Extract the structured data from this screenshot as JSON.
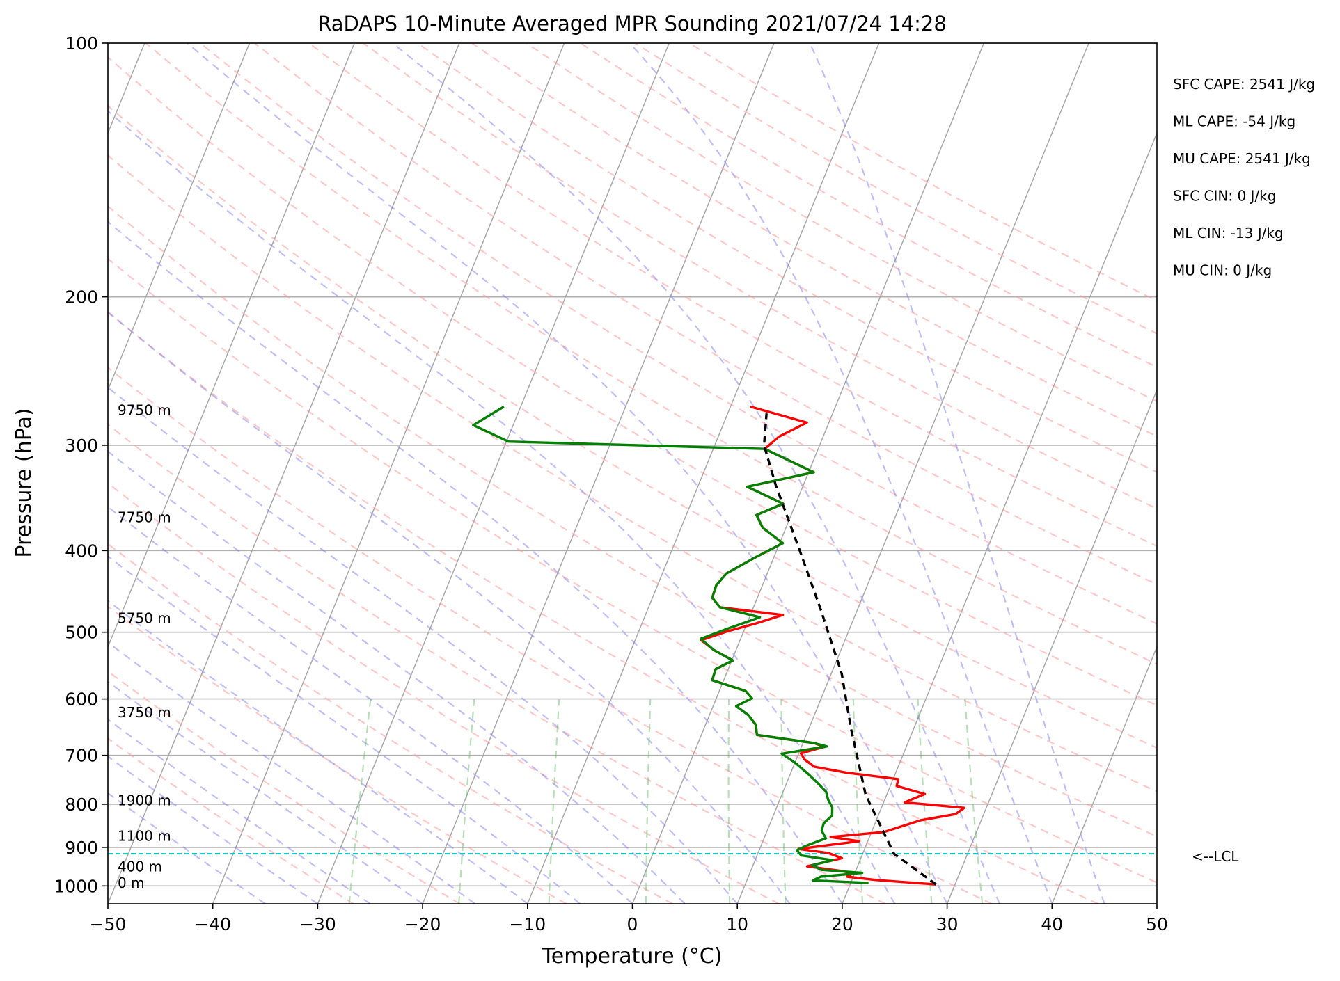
{
  "chart_data": {
    "type": "line",
    "subtype": "skew-T log-P sounding",
    "title": "RaDAPS 10-Minute Averaged MPR Sounding 2021/07/24 14:28",
    "xlabel": "Temperature (°C)",
    "ylabel": "Pressure (hPa)",
    "xlim": [
      -50,
      50
    ],
    "ylim": [
      1050,
      100
    ],
    "y_scale": "log",
    "x_ticks": [
      "−50",
      "−40",
      "−30",
      "−20",
      "−10",
      "0",
      "10",
      "20",
      "30",
      "40",
      "50"
    ],
    "x_tick_values": [
      -50,
      -40,
      -30,
      -20,
      -10,
      0,
      10,
      20,
      30,
      40,
      50
    ],
    "y_ticks": [
      "100",
      "200",
      "300",
      "400",
      "500",
      "600",
      "700",
      "800",
      "900",
      "1000"
    ],
    "y_tick_values": [
      100,
      200,
      300,
      400,
      500,
      600,
      700,
      800,
      900,
      1000
    ],
    "grid": true,
    "background_lines": {
      "isotherms": "gray",
      "dry_adiabats": "red dashed",
      "moist_adiabats": "blue dashed",
      "mixing_ratio": "green dashed"
    },
    "series": [
      {
        "role": "temperature",
        "color": "#ff0000",
        "points": [
          [
            -8.1,
            270
          ],
          [
            -2.1,
            282
          ],
          [
            -4.2,
            293
          ],
          [
            -5.1,
            303
          ],
          [
            0.5,
            323
          ],
          [
            -5.3,
            336
          ],
          [
            -1.2,
            352
          ],
          [
            -3.3,
            363
          ],
          [
            -2.2,
            376
          ],
          [
            0.3,
            392
          ],
          [
            -1.7,
            407
          ],
          [
            -3.9,
            426
          ],
          [
            -4.4,
            440
          ],
          [
            -4.3,
            455
          ],
          [
            -3.2,
            467
          ],
          [
            3.1,
            477
          ],
          [
            0.9,
            488
          ],
          [
            -1.6,
            499
          ],
          [
            -3.7,
            511
          ],
          [
            -2.1,
            525
          ],
          [
            0.1,
            540
          ],
          [
            -1.2,
            553
          ],
          [
            -1.1,
            570
          ],
          [
            2.5,
            587
          ],
          [
            3.4,
            599
          ],
          [
            2.2,
            612
          ],
          [
            3.7,
            627
          ],
          [
            4.8,
            644
          ],
          [
            5.3,
            662
          ],
          [
            11.1,
            677
          ],
          [
            12.2,
            684
          ],
          [
            10.2,
            696
          ],
          [
            10.8,
            708
          ],
          [
            12.0,
            722
          ],
          [
            15.3,
            734
          ],
          [
            20.5,
            747
          ],
          [
            20.6,
            761
          ],
          [
            23.6,
            778
          ],
          [
            22.0,
            796
          ],
          [
            27.9,
            808
          ],
          [
            27.3,
            822
          ],
          [
            24.2,
            836
          ],
          [
            21.2,
            863
          ],
          [
            16.3,
            875
          ],
          [
            19.2,
            885
          ],
          [
            13.7,
            904
          ],
          [
            16.7,
            914
          ],
          [
            18.2,
            927
          ],
          [
            16.9,
            936
          ],
          [
            15.2,
            948
          ],
          [
            18.7,
            960
          ],
          [
            19.8,
            967
          ],
          [
            19.4,
            975
          ],
          [
            22.3,
            984
          ],
          [
            28.2,
            996
          ]
        ]
      },
      {
        "role": "dewpoint",
        "color": "#008000",
        "points": [
          [
            -31.6,
            270
          ],
          [
            -33.8,
            284
          ],
          [
            -29.8,
            297
          ],
          [
            -5.1,
            303
          ],
          [
            0.5,
            323
          ],
          [
            -5.3,
            336
          ],
          [
            -1.2,
            352
          ],
          [
            -3.3,
            363
          ],
          [
            -2.2,
            376
          ],
          [
            0.3,
            392
          ],
          [
            -1.7,
            407
          ],
          [
            -3.9,
            426
          ],
          [
            -4.4,
            440
          ],
          [
            -4.3,
            455
          ],
          [
            -3.2,
            467
          ],
          [
            1.0,
            480
          ],
          [
            -1.6,
            495
          ],
          [
            -3.8,
            509
          ],
          [
            -2.1,
            525
          ],
          [
            0.1,
            540
          ],
          [
            -1.2,
            553
          ],
          [
            -1.1,
            570
          ],
          [
            2.5,
            587
          ],
          [
            3.4,
            599
          ],
          [
            2.2,
            612
          ],
          [
            3.7,
            627
          ],
          [
            4.8,
            644
          ],
          [
            5.3,
            662
          ],
          [
            11.1,
            677
          ],
          [
            12.4,
            683
          ],
          [
            8.4,
            697
          ],
          [
            10.0,
            714
          ],
          [
            11.6,
            735
          ],
          [
            12.9,
            754
          ],
          [
            14.1,
            773
          ],
          [
            14.6,
            790
          ],
          [
            15.3,
            807
          ],
          [
            15.6,
            825
          ],
          [
            15.1,
            843
          ],
          [
            15.2,
            860
          ],
          [
            15.9,
            878
          ],
          [
            14.3,
            896
          ],
          [
            13.6,
            907
          ],
          [
            14.2,
            920
          ],
          [
            17.4,
            932
          ],
          [
            15.6,
            945
          ],
          [
            16.7,
            957
          ],
          [
            20.7,
            965
          ],
          [
            16.9,
            975
          ],
          [
            16.3,
            985
          ],
          [
            21.7,
            992
          ]
        ]
      },
      {
        "role": "parcel profile",
        "color": "#000000",
        "dashed": true,
        "points": [
          [
            28.2,
            996
          ],
          [
            23.0,
            916
          ],
          [
            18.0,
            780
          ],
          [
            14.0,
            650
          ],
          [
            11.0,
            560
          ],
          [
            6.5,
            470
          ],
          [
            2.2,
            400
          ],
          [
            -2.6,
            335
          ],
          [
            -5.3,
            300
          ],
          [
            -6.3,
            275
          ]
        ]
      }
    ],
    "lcl": {
      "pressure": 916,
      "label": "<--LCL",
      "color": "#00bfbf"
    },
    "height_labels": [
      {
        "text": "9750 m",
        "pressure": 273
      },
      {
        "text": "7750 m",
        "pressure": 366
      },
      {
        "text": "5750 m",
        "pressure": 482
      },
      {
        "text": "3750 m",
        "pressure": 624
      },
      {
        "text": "1900 m",
        "pressure": 793
      },
      {
        "text": "1100 m",
        "pressure": 874
      },
      {
        "text": "400 m",
        "pressure": 950
      },
      {
        "text": "0 m",
        "pressure": 994
      }
    ],
    "annotations": [
      "SFC CAPE: 2541 J/kg",
      "ML CAPE: -54 J/kg",
      "MU CAPE: 2541 J/kg",
      "SFC CIN: 0 J/kg",
      "ML CIN: -13 J/kg",
      "MU CIN: 0 J/kg"
    ]
  }
}
